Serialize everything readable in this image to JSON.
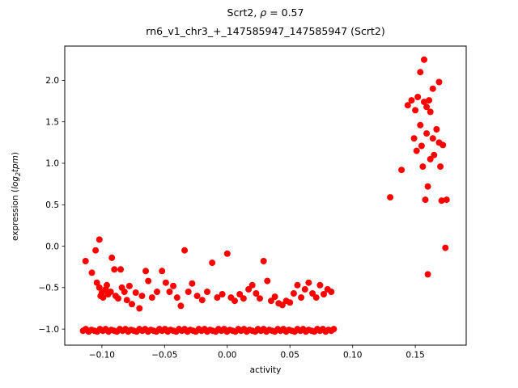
{
  "figure": {
    "title": {
      "prefix": "Scrt2, ",
      "rho": "ρ",
      "suffix": " = 0.57"
    },
    "subtitle": "rn6_v1_chr3_+_147585947_147585947 (Scrt2)",
    "xlabel": "activity",
    "ylabel": {
      "prefix": "expression (",
      "log": "log",
      "sub": "2",
      "var": "tpm",
      "suffix": ")"
    }
  },
  "chart_data": {
    "type": "scatter",
    "title": "Scrt2, ρ = 0.57",
    "subtitle": "rn6_v1_chr3_+_147585947_147585947 (Scrt2)",
    "xlabel": "activity",
    "ylabel": "expression (log2 tpm)",
    "grid": false,
    "legend": null,
    "marker": {
      "shape": "circle",
      "color": "#ff0000",
      "radius_px": 4
    },
    "axis_color": "#000000",
    "xlim": [
      -0.1296,
      0.1906
    ],
    "ylim": [
      -1.194,
      2.414
    ],
    "xticks": {
      "values": [
        -0.1,
        -0.05,
        0.0,
        0.05,
        0.1,
        0.15
      ],
      "labels": [
        "−0.10",
        "−0.05",
        "0.00",
        "0.05",
        "0.10",
        "0.15"
      ]
    },
    "yticks": {
      "values": [
        -1.0,
        -0.5,
        0.0,
        0.5,
        1.0,
        1.5,
        2.0
      ],
      "labels": [
        "−1.0",
        "−0.5",
        "0.0",
        "0.5",
        "1.0",
        "1.5",
        "2.0"
      ]
    },
    "points": [
      [
        -0.115,
        -1.02
      ],
      [
        -0.1128,
        -1.0
      ],
      [
        -0.1105,
        -1.03
      ],
      [
        -0.1082,
        -1.01
      ],
      [
        -0.106,
        -1.02
      ],
      [
        -0.1037,
        -1.03
      ],
      [
        -0.1015,
        -1.0
      ],
      [
        -0.0992,
        -1.02
      ],
      [
        -0.097,
        -1.0
      ],
      [
        -0.0947,
        -1.03
      ],
      [
        -0.0925,
        -1.01
      ],
      [
        -0.0902,
        -1.02
      ],
      [
        -0.088,
        -1.03
      ],
      [
        -0.0857,
        -1.0
      ],
      [
        -0.0835,
        -1.02
      ],
      [
        -0.0812,
        -1.0
      ],
      [
        -0.079,
        -1.03
      ],
      [
        -0.0767,
        -1.01
      ],
      [
        -0.0745,
        -1.02
      ],
      [
        -0.0722,
        -1.03
      ],
      [
        -0.07,
        -1.0
      ],
      [
        -0.0677,
        -1.02
      ],
      [
        -0.0655,
        -1.0
      ],
      [
        -0.0632,
        -1.03
      ],
      [
        -0.061,
        -1.01
      ],
      [
        -0.0587,
        -1.02
      ],
      [
        -0.0565,
        -1.03
      ],
      [
        -0.0542,
        -1.0
      ],
      [
        -0.052,
        -1.02
      ],
      [
        -0.0497,
        -1.0
      ],
      [
        -0.0475,
        -1.03
      ],
      [
        -0.0452,
        -1.01
      ],
      [
        -0.043,
        -1.02
      ],
      [
        -0.0407,
        -1.03
      ],
      [
        -0.0385,
        -1.0
      ],
      [
        -0.0362,
        -1.02
      ],
      [
        -0.034,
        -1.0
      ],
      [
        -0.0317,
        -1.03
      ],
      [
        -0.0295,
        -1.01
      ],
      [
        -0.0272,
        -1.02
      ],
      [
        -0.025,
        -1.03
      ],
      [
        -0.0227,
        -1.0
      ],
      [
        -0.0205,
        -1.02
      ],
      [
        -0.0182,
        -1.0
      ],
      [
        -0.016,
        -1.03
      ],
      [
        -0.0137,
        -1.01
      ],
      [
        -0.0115,
        -1.02
      ],
      [
        -0.0092,
        -1.03
      ],
      [
        -0.007,
        -1.0
      ],
      [
        -0.0047,
        -1.02
      ],
      [
        -0.0025,
        -1.0
      ],
      [
        -0.0002,
        -1.03
      ],
      [
        0.002,
        -1.01
      ],
      [
        0.0043,
        -1.02
      ],
      [
        0.0065,
        -1.03
      ],
      [
        0.0088,
        -1.0
      ],
      [
        0.011,
        -1.02
      ],
      [
        0.0133,
        -1.0
      ],
      [
        0.0155,
        -1.03
      ],
      [
        0.0178,
        -1.01
      ],
      [
        0.02,
        -1.02
      ],
      [
        0.0223,
        -1.03
      ],
      [
        0.0245,
        -1.0
      ],
      [
        0.0268,
        -1.02
      ],
      [
        0.029,
        -1.0
      ],
      [
        0.0313,
        -1.03
      ],
      [
        0.0335,
        -1.01
      ],
      [
        0.0358,
        -1.02
      ],
      [
        0.038,
        -1.03
      ],
      [
        0.0403,
        -1.0
      ],
      [
        0.0425,
        -1.02
      ],
      [
        0.0448,
        -1.0
      ],
      [
        0.047,
        -1.03
      ],
      [
        0.0493,
        -1.01
      ],
      [
        0.0515,
        -1.02
      ],
      [
        0.0538,
        -1.03
      ],
      [
        0.056,
        -1.0
      ],
      [
        0.0583,
        -1.02
      ],
      [
        0.0605,
        -1.0
      ],
      [
        0.0628,
        -1.03
      ],
      [
        0.065,
        -1.01
      ],
      [
        0.0673,
        -1.02
      ],
      [
        0.0695,
        -1.03
      ],
      [
        0.0718,
        -1.0
      ],
      [
        0.074,
        -1.02
      ],
      [
        0.0763,
        -1.0
      ],
      [
        0.0785,
        -1.03
      ],
      [
        0.0808,
        -1.01
      ],
      [
        0.083,
        -1.02
      ],
      [
        0.085,
        -1.0
      ],
      [
        -0.113,
        -0.18
      ],
      [
        -0.108,
        -0.32
      ],
      [
        -0.105,
        -0.05
      ],
      [
        -0.104,
        -0.44
      ],
      [
        -0.102,
        0.08
      ],
      [
        -0.102,
        -0.5
      ],
      [
        -0.1,
        -0.56
      ],
      [
        -0.099,
        -0.62
      ],
      [
        -0.097,
        -0.52
      ],
      [
        -0.096,
        -0.47
      ],
      [
        -0.095,
        -0.58
      ],
      [
        -0.093,
        -0.55
      ],
      [
        -0.101,
        -0.6
      ],
      [
        -0.092,
        -0.14
      ],
      [
        -0.09,
        -0.28
      ],
      [
        -0.089,
        -0.6
      ],
      [
        -0.087,
        -0.63
      ],
      [
        -0.085,
        -0.28
      ],
      [
        -0.084,
        -0.5
      ],
      [
        -0.082,
        -0.55
      ],
      [
        -0.08,
        -0.65
      ],
      [
        -0.078,
        -0.48
      ],
      [
        -0.076,
        -0.7
      ],
      [
        -0.073,
        -0.56
      ],
      [
        -0.07,
        -0.75
      ],
      [
        -0.068,
        -0.6
      ],
      [
        -0.065,
        -0.3
      ],
      [
        -0.063,
        -0.42
      ],
      [
        -0.06,
        -0.62
      ],
      [
        -0.056,
        -0.55
      ],
      [
        -0.052,
        -0.3
      ],
      [
        -0.049,
        -0.44
      ],
      [
        -0.046,
        -0.55
      ],
      [
        -0.043,
        -0.48
      ],
      [
        -0.04,
        -0.62
      ],
      [
        -0.037,
        -0.72
      ],
      [
        -0.034,
        -0.05
      ],
      [
        -0.031,
        -0.55
      ],
      [
        -0.028,
        -0.45
      ],
      [
        -0.024,
        -0.6
      ],
      [
        -0.02,
        -0.65
      ],
      [
        -0.016,
        -0.55
      ],
      [
        -0.012,
        -0.2
      ],
      [
        -0.008,
        -0.62
      ],
      [
        -0.004,
        -0.58
      ],
      [
        0.0,
        -0.09
      ],
      [
        0.003,
        -0.62
      ],
      [
        0.006,
        -0.66
      ],
      [
        0.01,
        -0.58
      ],
      [
        0.013,
        -0.63
      ],
      [
        0.017,
        -0.52
      ],
      [
        0.02,
        -0.47
      ],
      [
        0.023,
        -0.57
      ],
      [
        0.026,
        -0.63
      ],
      [
        0.029,
        -0.18
      ],
      [
        0.032,
        -0.42
      ],
      [
        0.035,
        -0.66
      ],
      [
        0.038,
        -0.61
      ],
      [
        0.041,
        -0.69
      ],
      [
        0.044,
        -0.71
      ],
      [
        0.047,
        -0.66
      ],
      [
        0.05,
        -0.68
      ],
      [
        0.053,
        -0.57
      ],
      [
        0.056,
        -0.47
      ],
      [
        0.059,
        -0.62
      ],
      [
        0.062,
        -0.52
      ],
      [
        0.065,
        -0.44
      ],
      [
        0.068,
        -0.57
      ],
      [
        0.071,
        -0.62
      ],
      [
        0.074,
        -0.47
      ],
      [
        0.077,
        -0.58
      ],
      [
        0.08,
        -0.52
      ],
      [
        0.083,
        -0.55
      ],
      [
        0.13,
        0.59
      ],
      [
        0.139,
        0.92
      ],
      [
        0.144,
        1.7
      ],
      [
        0.147,
        1.76
      ],
      [
        0.149,
        1.3
      ],
      [
        0.15,
        1.64
      ],
      [
        0.151,
        1.15
      ],
      [
        0.152,
        1.8
      ],
      [
        0.154,
        2.1
      ],
      [
        0.154,
        1.46
      ],
      [
        0.155,
        1.21
      ],
      [
        0.156,
        0.96
      ],
      [
        0.157,
        2.25
      ],
      [
        0.157,
        1.74
      ],
      [
        0.158,
        0.56
      ],
      [
        0.159,
        1.68
      ],
      [
        0.159,
        1.36
      ],
      [
        0.16,
        0.72
      ],
      [
        0.161,
        1.76
      ],
      [
        0.162,
        1.05
      ],
      [
        0.162,
        1.62
      ],
      [
        0.164,
        1.9
      ],
      [
        0.164,
        1.3
      ],
      [
        0.165,
        1.1
      ],
      [
        0.167,
        1.41
      ],
      [
        0.169,
        1.98
      ],
      [
        0.169,
        1.25
      ],
      [
        0.17,
        0.96
      ],
      [
        0.171,
        0.55
      ],
      [
        0.172,
        1.22
      ],
      [
        0.174,
        -0.02
      ],
      [
        0.16,
        -0.34
      ],
      [
        0.175,
        0.56
      ]
    ]
  }
}
